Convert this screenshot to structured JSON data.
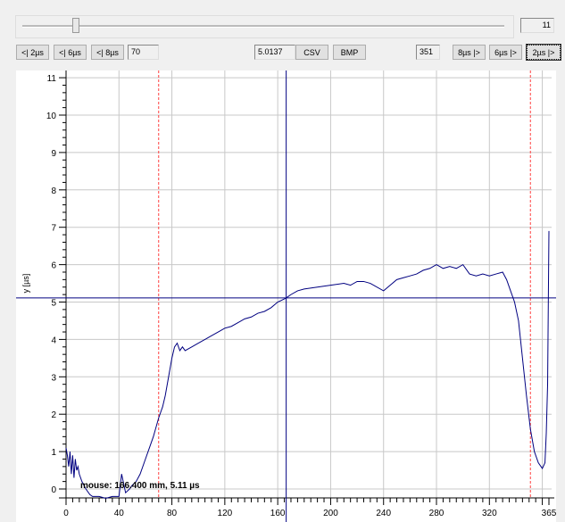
{
  "slider": {
    "value_label": "11"
  },
  "toolbar": {
    "left_buttons": [
      "<| 2µs",
      "<| 6µs",
      "<| 8µs"
    ],
    "left_field": "70",
    "value_field": "5.0137",
    "csv": "CSV",
    "bmp": "BMP",
    "right_field": "351",
    "right_buttons": [
      "8µs |>",
      "6µs |>",
      "2µs |>"
    ]
  },
  "chart_data": {
    "type": "line",
    "xlabel": "",
    "ylabel": "y [µs]",
    "xlim": [
      0,
      365
    ],
    "ylim": [
      -0.3,
      11.2
    ],
    "x_ticks": [
      0,
      40,
      80,
      120,
      160,
      200,
      240,
      280,
      320,
      365
    ],
    "y_ticks": [
      0,
      1,
      2,
      3,
      4,
      5,
      6,
      7,
      8,
      9,
      10,
      11
    ],
    "grid": true,
    "cursor": {
      "x": 166.4,
      "y": 5.11,
      "label": "mouse: 166.400 mm, 5.11 µs"
    },
    "markers": [
      70,
      351
    ],
    "colors": {
      "line": "#000080",
      "cursor": "#000080",
      "marker": "#ff4040",
      "grid": "#c8c8c8"
    },
    "x": [
      0,
      1,
      2,
      3,
      4,
      5,
      6,
      7,
      8,
      9,
      10,
      12,
      15,
      18,
      20,
      25,
      30,
      35,
      40,
      42,
      45,
      48,
      50,
      53,
      56,
      60,
      63,
      66,
      70,
      73,
      75,
      78,
      80,
      82,
      84,
      86,
      88,
      90,
      95,
      100,
      105,
      110,
      115,
      120,
      125,
      130,
      135,
      140,
      145,
      150,
      155,
      160,
      166,
      170,
      175,
      180,
      190,
      200,
      210,
      215,
      220,
      225,
      230,
      240,
      245,
      250,
      255,
      260,
      265,
      270,
      275,
      280,
      285,
      290,
      295,
      300,
      305,
      310,
      315,
      320,
      325,
      330,
      333,
      336,
      339,
      342,
      345,
      348,
      351,
      354,
      357,
      360,
      362,
      363,
      364,
      365
    ],
    "y": [
      1.1,
      0.9,
      0.6,
      1.0,
      0.4,
      0.9,
      0.3,
      0.8,
      0.5,
      0.6,
      0.4,
      0.2,
      0.0,
      -0.15,
      -0.2,
      -0.2,
      -0.25,
      -0.2,
      -0.2,
      0.4,
      -0.1,
      0.0,
      0.1,
      0.2,
      0.4,
      0.8,
      1.1,
      1.4,
      1.9,
      2.2,
      2.5,
      3.1,
      3.5,
      3.8,
      3.9,
      3.7,
      3.8,
      3.7,
      3.8,
      3.9,
      4.0,
      4.1,
      4.2,
      4.3,
      4.35,
      4.45,
      4.55,
      4.6,
      4.7,
      4.75,
      4.85,
      5.0,
      5.1,
      5.2,
      5.3,
      5.35,
      5.4,
      5.45,
      5.5,
      5.45,
      5.55,
      5.55,
      5.5,
      5.3,
      5.45,
      5.6,
      5.65,
      5.7,
      5.75,
      5.85,
      5.9,
      6.0,
      5.9,
      5.95,
      5.9,
      6.0,
      5.75,
      5.7,
      5.75,
      5.7,
      5.75,
      5.8,
      5.6,
      5.3,
      5.0,
      4.5,
      3.5,
      2.5,
      1.6,
      1.0,
      0.7,
      0.55,
      0.7,
      1.5,
      2.8,
      6.9
    ]
  }
}
